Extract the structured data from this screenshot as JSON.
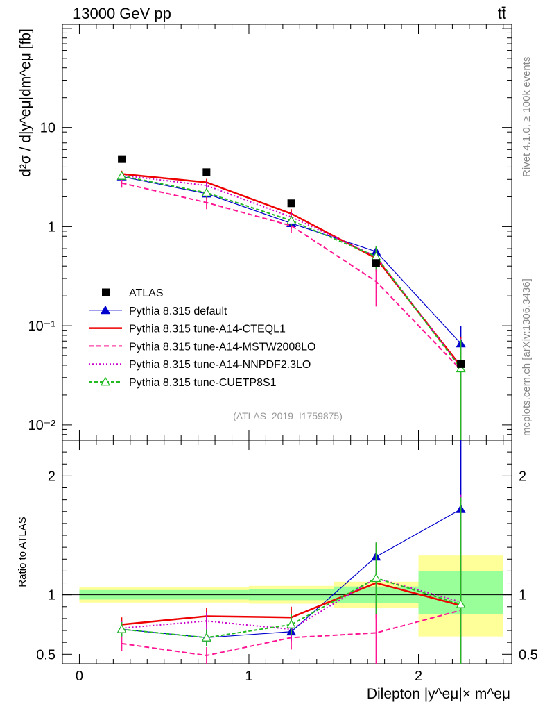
{
  "header": {
    "energy_label": "13000 GeV pp",
    "process_label": "tt̄"
  },
  "side_labels": {
    "rivet": "Rivet 4.1.0, ≥ 100k events",
    "mcplots": "mcplots.cern.ch [arXiv:1306.3436]"
  },
  "analysis_tag": "(ATLAS_2019_I1759875)",
  "chart_data": {
    "type": "scatter",
    "main": {
      "ylabel": "d²σ / d|y^eμ|dm^eμ [fb]",
      "yscale": "log",
      "ylim": [
        0.007,
        110
      ],
      "ytick_labels": [
        "10⁻²",
        "10⁻¹",
        "1",
        "10"
      ]
    },
    "ratio": {
      "ylabel": "Ratio to ATLAS",
      "ylim": [
        0.42,
        2.3
      ],
      "ytick_labels": [
        "0.5",
        "1",
        "2"
      ]
    },
    "xlabel": "Dilepton |y^eμ|× m^eμ",
    "xlim": [
      -0.1,
      2.55
    ],
    "xtick_labels": [
      "0",
      "1",
      "2"
    ],
    "bins": [
      [
        0.0,
        0.5
      ],
      [
        0.5,
        1.0
      ],
      [
        1.0,
        1.5
      ],
      [
        1.5,
        2.0
      ],
      [
        2.0,
        2.5
      ]
    ],
    "x": [
      0.25,
      0.75,
      1.25,
      1.75,
      2.25
    ],
    "data": {
      "name": "ATLAS",
      "values": [
        4.8,
        3.55,
        1.72,
        0.43,
        0.041
      ],
      "band_inner": [
        [
          0.96,
          1.04
        ],
        [
          0.96,
          1.04
        ],
        [
          0.955,
          1.045
        ],
        [
          0.93,
          1.07
        ],
        [
          0.84,
          1.2
        ]
      ],
      "band_outer": [
        [
          0.935,
          1.065
        ],
        [
          0.935,
          1.065
        ],
        [
          0.925,
          1.075
        ],
        [
          0.89,
          1.11
        ],
        [
          0.65,
          1.33
        ]
      ]
    },
    "series": [
      {
        "name": "Pythia 8.315 default",
        "color": "#0000cc",
        "style": "solid-triangle",
        "values": [
          3.2,
          2.15,
          1.08,
          0.56,
          0.066
        ],
        "ratio": [
          0.71,
          0.64,
          0.69,
          1.32,
          1.72
        ],
        "ratio_err": [
          0.06,
          0.07,
          0.08,
          0.1,
          0.85
        ]
      },
      {
        "name": "Pythia 8.315 tune-A14-CTEQL1",
        "color": "#ee0000",
        "style": "solid",
        "values": [
          3.4,
          2.8,
          1.35,
          0.48,
          0.039
        ],
        "ratio": [
          0.75,
          0.82,
          0.81,
          1.1,
          0.91
        ],
        "ratio_err": [
          0.06,
          0.07,
          0.09,
          0.3,
          0.9
        ]
      },
      {
        "name": "Pythia 8.315 tune-A14-MSTW2008LO",
        "color": "#ff1493",
        "style": "dashed",
        "values": [
          2.75,
          1.75,
          1.02,
          0.28,
          0.036
        ],
        "ratio": [
          0.59,
          0.49,
          0.64,
          0.68,
          0.87
        ],
        "ratio_err": [
          0.06,
          0.07,
          0.1,
          0.3,
          0.9
        ]
      },
      {
        "name": "Pythia 8.315 tune-A14-NNPDF2.3LO",
        "color": "#cc00cc",
        "style": "dotted",
        "values": [
          3.3,
          2.6,
          1.25,
          0.5,
          0.038
        ],
        "ratio": [
          0.72,
          0.78,
          0.71,
          1.14,
          0.94
        ],
        "ratio_err": [
          0.06,
          0.07,
          0.09,
          0.3,
          0.9
        ]
      },
      {
        "name": "Pythia 8.315 tune-CUETP8S1",
        "color": "#22bb22",
        "style": "dashed-open-triangle",
        "values": [
          3.25,
          2.2,
          1.15,
          0.5,
          0.037
        ],
        "ratio": [
          0.71,
          0.64,
          0.75,
          1.14,
          0.92
        ],
        "ratio_err": [
          0.06,
          0.07,
          0.09,
          0.3,
          0.9
        ]
      }
    ]
  }
}
